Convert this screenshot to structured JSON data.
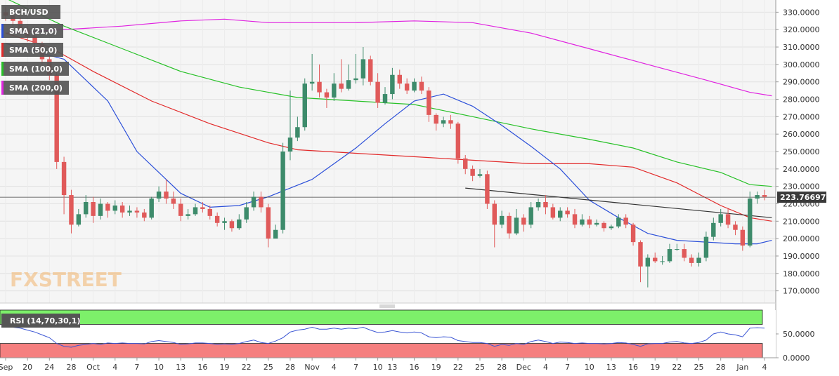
{
  "colors": {
    "up_candle": "#3d8b6b",
    "down_candle": "#e05a5a",
    "sma21": "#2b4fd9",
    "sma50": "#e22a2a",
    "sma100": "#27c127",
    "sma200": "#e023e0",
    "rsi_line": "#3a55d4",
    "rsi_overbought": "#7df06a",
    "rsi_oversold": "#f57f7f",
    "trendline": "#333333",
    "price_tag": "#3a3a3a"
  },
  "chart_data": [
    {
      "type": "candlestick",
      "symbol": "BCH/USD",
      "ylim": [
        163,
        337
      ],
      "yticks": [
        "330.0000",
        "320.0000",
        "310.0000",
        "300.0000",
        "290.0000",
        "280.0000",
        "270.0000",
        "260.0000",
        "250.0000",
        "240.0000",
        "230.0000",
        "220.0000",
        "210.0000",
        "200.0000",
        "190.0000",
        "180.0000",
        "170.0000"
      ],
      "x_labels": [
        "Sep",
        "20",
        "24",
        "28",
        "Oct",
        "4",
        "7",
        "10",
        "13",
        "16",
        "19",
        "22",
        "25",
        "28",
        "Nov",
        "4",
        "7",
        "10",
        "13",
        "16",
        "19",
        "22",
        "25",
        "28",
        "Dec",
        "4",
        "7",
        "10",
        "13",
        "16",
        "19",
        "22",
        "25",
        "28",
        "Jan",
        "4"
      ],
      "current_price": "223.76697",
      "legend": [
        "BCH/USD",
        "SMA (21,0)",
        "SMA (50,0)",
        "SMA (100,0)",
        "SMA (200,0)"
      ],
      "candles": [
        [
          330,
          328,
          333,
          325
        ],
        [
          328,
          325,
          330,
          322
        ],
        [
          325,
          320,
          327,
          317
        ],
        [
          320,
          316,
          322,
          313
        ],
        [
          316,
          312,
          318,
          308
        ],
        [
          312,
          303,
          313,
          300
        ],
        [
          303,
          294,
          305,
          291
        ],
        [
          294,
          244,
          296,
          240
        ],
        [
          244,
          225,
          247,
          214
        ],
        [
          225,
          208,
          228,
          203
        ],
        [
          208,
          214,
          217,
          207
        ],
        [
          214,
          221,
          225,
          212
        ],
        [
          221,
          213,
          224,
          209
        ],
        [
          213,
          220,
          223,
          211
        ],
        [
          220,
          216,
          221,
          212
        ],
        [
          216,
          219,
          222,
          214
        ],
        [
          219,
          215,
          221,
          212
        ],
        [
          215,
          216,
          219,
          213
        ],
        [
          216,
          215,
          218,
          212
        ],
        [
          215,
          212,
          217,
          210
        ],
        [
          212,
          223,
          224,
          211
        ],
        [
          223,
          227,
          230,
          221
        ],
        [
          227,
          223,
          234,
          220
        ],
        [
          223,
          220,
          227,
          217
        ],
        [
          220,
          213,
          223,
          210
        ],
        [
          213,
          214,
          217,
          211
        ],
        [
          214,
          218,
          220,
          213
        ],
        [
          218,
          217,
          221,
          215
        ],
        [
          217,
          213,
          219,
          211
        ],
        [
          213,
          209,
          215,
          207
        ],
        [
          209,
          210,
          212,
          205
        ],
        [
          210,
          206,
          211,
          204
        ],
        [
          206,
          211,
          214,
          205
        ],
        [
          211,
          218,
          221,
          209
        ],
        [
          218,
          224,
          227,
          216
        ],
        [
          224,
          218,
          227,
          215
        ],
        [
          218,
          200,
          220,
          195
        ],
        [
          200,
          205,
          208,
          204
        ],
        [
          205,
          250,
          255,
          203
        ],
        [
          250,
          258,
          285,
          245
        ],
        [
          258,
          264,
          270,
          256
        ],
        [
          264,
          289,
          292,
          262
        ],
        [
          289,
          290,
          306,
          285
        ],
        [
          290,
          284,
          300,
          281
        ],
        [
          284,
          281,
          286,
          275
        ],
        [
          281,
          289,
          295,
          279
        ],
        [
          289,
          286,
          303,
          284
        ],
        [
          286,
          291,
          300,
          285
        ],
        [
          291,
          292,
          306,
          289
        ],
        [
          292,
          303,
          310,
          288
        ],
        [
          303,
          290,
          305,
          288
        ],
        [
          290,
          278,
          295,
          275
        ],
        [
          278,
          283,
          287,
          277
        ],
        [
          283,
          294,
          298,
          280
        ],
        [
          294,
          289,
          297,
          286
        ],
        [
          289,
          285,
          292,
          283
        ],
        [
          285,
          290,
          292,
          284
        ],
        [
          290,
          285,
          293,
          283
        ],
        [
          285,
          271,
          287,
          267
        ],
        [
          271,
          266,
          272,
          262
        ],
        [
          266,
          268,
          270,
          264
        ],
        [
          268,
          266,
          271,
          263
        ],
        [
          266,
          246,
          267,
          243
        ],
        [
          246,
          240,
          248,
          237
        ],
        [
          240,
          236,
          242,
          233
        ],
        [
          236,
          237,
          240,
          235
        ],
        [
          237,
          220,
          239,
          217
        ],
        [
          220,
          208,
          222,
          195
        ],
        [
          208,
          213,
          216,
          206
        ],
        [
          213,
          203,
          215,
          200
        ],
        [
          203,
          212,
          217,
          202
        ],
        [
          212,
          208,
          214,
          204
        ],
        [
          208,
          218,
          221,
          206
        ],
        [
          218,
          221,
          223,
          216
        ],
        [
          221,
          218,
          225,
          214
        ],
        [
          218,
          212,
          220,
          211
        ],
        [
          212,
          216,
          218,
          210
        ],
        [
          216,
          214,
          218,
          212
        ],
        [
          214,
          208,
          217,
          206
        ],
        [
          208,
          211,
          214,
          207
        ],
        [
          211,
          208,
          213,
          206
        ],
        [
          208,
          209,
          211,
          207
        ],
        [
          209,
          206,
          210,
          204
        ],
        [
          206,
          207,
          208,
          205
        ],
        [
          207,
          212,
          214,
          206
        ],
        [
          212,
          208,
          214,
          206
        ],
        [
          208,
          198,
          209,
          196
        ],
        [
          198,
          184,
          199,
          175
        ],
        [
          184,
          189,
          191,
          172
        ],
        [
          189,
          187,
          192,
          186
        ],
        [
          187,
          187,
          190,
          185
        ],
        [
          187,
          194,
          197,
          186
        ],
        [
          194,
          194,
          197,
          193
        ],
        [
          194,
          189,
          197,
          187
        ],
        [
          189,
          186,
          191,
          184
        ],
        [
          186,
          189,
          192,
          184
        ],
        [
          189,
          201,
          204,
          187
        ],
        [
          201,
          209,
          212,
          199
        ],
        [
          209,
          214,
          217,
          207
        ],
        [
          214,
          208,
          217,
          206
        ],
        [
          208,
          205,
          210,
          202
        ],
        [
          205,
          196,
          207,
          193
        ],
        [
          196,
          223,
          227,
          195
        ],
        [
          223,
          225,
          227,
          220
        ],
        [
          225,
          224,
          228,
          222
        ]
      ],
      "sma21": [
        [
          0,
          312
        ],
        [
          8,
          303
        ],
        [
          14,
          279
        ],
        [
          18,
          250
        ],
        [
          24,
          226
        ],
        [
          28,
          218
        ],
        [
          32,
          219
        ],
        [
          36,
          224
        ],
        [
          42,
          234
        ],
        [
          48,
          252
        ],
        [
          52,
          266
        ],
        [
          56,
          279
        ],
        [
          60,
          283
        ],
        [
          64,
          276
        ],
        [
          68,
          265
        ],
        [
          72,
          253
        ],
        [
          76,
          240
        ],
        [
          80,
          222
        ],
        [
          84,
          212
        ],
        [
          88,
          203
        ],
        [
          92,
          199
        ],
        [
          96,
          198
        ],
        [
          100,
          197
        ],
        [
          103,
          197
        ],
        [
          105,
          199
        ]
      ],
      "sma50": [
        [
          0,
          318
        ],
        [
          6,
          310
        ],
        [
          12,
          296
        ],
        [
          20,
          279
        ],
        [
          28,
          266
        ],
        [
          36,
          255
        ],
        [
          40,
          251
        ],
        [
          48,
          249
        ],
        [
          56,
          247
        ],
        [
          64,
          245
        ],
        [
          72,
          243
        ],
        [
          80,
          243
        ],
        [
          86,
          241
        ],
        [
          92,
          232
        ],
        [
          98,
          219
        ],
        [
          102,
          212
        ],
        [
          105,
          210
        ]
      ],
      "sma100": [
        [
          0,
          338
        ],
        [
          8,
          322
        ],
        [
          16,
          309
        ],
        [
          24,
          296
        ],
        [
          32,
          287
        ],
        [
          40,
          281
        ],
        [
          48,
          279
        ],
        [
          56,
          277
        ],
        [
          64,
          270
        ],
        [
          72,
          263
        ],
        [
          80,
          257
        ],
        [
          86,
          252
        ],
        [
          92,
          244
        ],
        [
          98,
          238
        ],
        [
          102,
          231
        ],
        [
          105,
          230
        ]
      ],
      "sma200": [
        [
          0,
          318
        ],
        [
          16,
          322
        ],
        [
          24,
          325
        ],
        [
          30,
          326
        ],
        [
          36,
          324
        ],
        [
          48,
          324
        ],
        [
          56,
          325
        ],
        [
          64,
          324
        ],
        [
          72,
          318
        ],
        [
          80,
          309
        ],
        [
          88,
          300
        ],
        [
          96,
          291
        ],
        [
          102,
          284
        ],
        [
          105,
          282
        ]
      ],
      "trendline": [
        [
          63,
          229
        ],
        [
          105,
          212
        ]
      ]
    },
    {
      "type": "line",
      "name": "RSI (14,70,30,1)",
      "ylim": [
        0,
        100
      ],
      "yticks": [
        "50.0000",
        "0.0000"
      ],
      "overbought": 70,
      "oversold": 30,
      "values": [
        67,
        64,
        62,
        58,
        54,
        48,
        42,
        30,
        24,
        22,
        26,
        28,
        30,
        28,
        31,
        30,
        31,
        30,
        30,
        29,
        34,
        36,
        34,
        32,
        28,
        29,
        31,
        31,
        30,
        28,
        29,
        28,
        30,
        34,
        37,
        32,
        30,
        35,
        42,
        54,
        58,
        60,
        64,
        60,
        60,
        62,
        60,
        62,
        61,
        64,
        58,
        53,
        54,
        57,
        54,
        52,
        54,
        52,
        44,
        42,
        44,
        43,
        36,
        34,
        32,
        32,
        30,
        24,
        28,
        26,
        30,
        28,
        34,
        37,
        34,
        30,
        33,
        32,
        30,
        31,
        30,
        30,
        29,
        30,
        32,
        31,
        28,
        24,
        29,
        30,
        30,
        33,
        34,
        31,
        30,
        32,
        37,
        50,
        54,
        50,
        48,
        44,
        62,
        63,
        62
      ]
    }
  ],
  "watermark": "FXSTREET"
}
